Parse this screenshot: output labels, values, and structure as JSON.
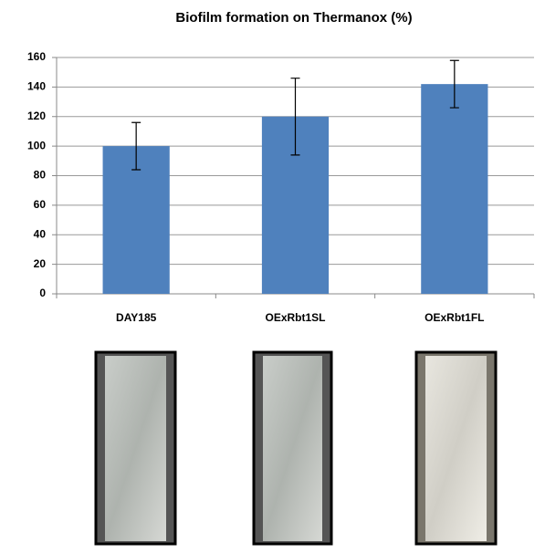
{
  "chart_data": {
    "type": "bar",
    "title": "Biofilm formation on Thermanox (%)",
    "categories": [
      "DAY185",
      "OExRbt1SL",
      "OExRbt1FL"
    ],
    "values": [
      100,
      120,
      142
    ],
    "errors": [
      16,
      26,
      16
    ],
    "color": "#4f81bd",
    "ylim": [
      0,
      160
    ],
    "yticks": [
      0,
      20,
      40,
      60,
      80,
      100,
      120,
      140,
      160
    ],
    "grid": true
  }
}
